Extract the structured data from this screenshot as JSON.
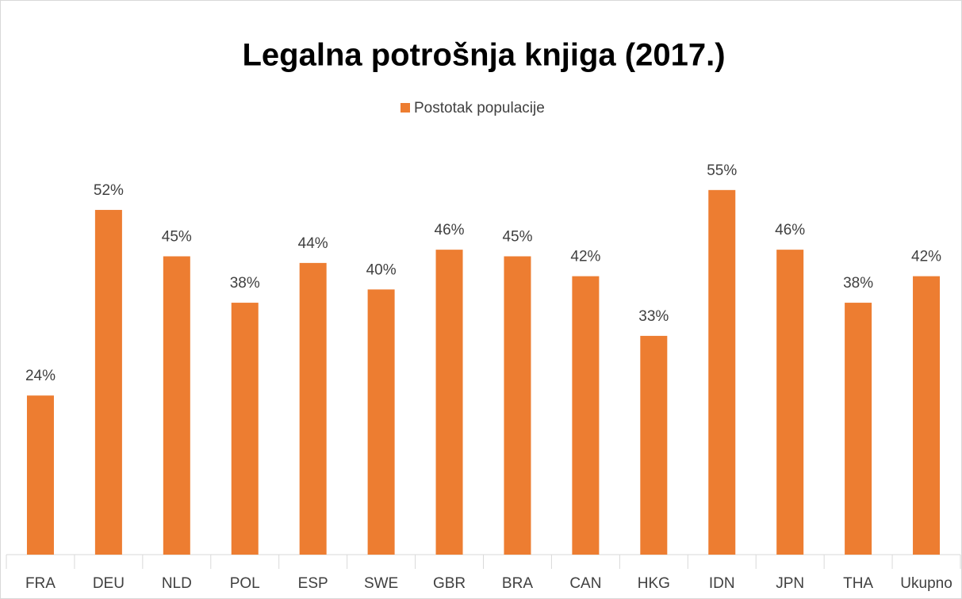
{
  "chart_data": {
    "type": "bar",
    "title": "Legalna potrošnja knjiga (2017.)",
    "categories": [
      "FRA",
      "DEU",
      "NLD",
      "POL",
      "ESP",
      "SWE",
      "GBR",
      "BRA",
      "CAN",
      "HKG",
      "IDN",
      "JPN",
      "THA",
      "Ukupno"
    ],
    "series": [
      {
        "name": "Postotak populacije",
        "color": "#ed7d31",
        "values": [
          24,
          52,
          45,
          38,
          44,
          40,
          46,
          45,
          42,
          33,
          55,
          46,
          38,
          42
        ],
        "value_labels": [
          "24%",
          "52%",
          "45%",
          "38%",
          "44%",
          "40%",
          "46%",
          "45%",
          "42%",
          "33%",
          "55%",
          "46%",
          "38%",
          "42%"
        ]
      }
    ],
    "ylim": [
      0,
      60
    ],
    "legend": "top"
  }
}
